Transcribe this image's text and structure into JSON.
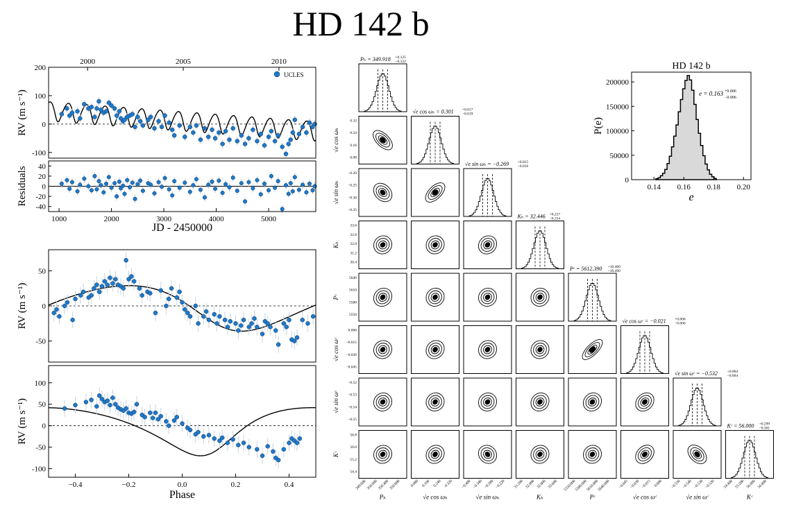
{
  "title": "HD 142 b",
  "chart_data": [
    {
      "id": "rv-time",
      "type": "scatter",
      "ylabel": "RV (m s⁻¹)",
      "xlim": [
        800,
        5900
      ],
      "ylim": [
        -120,
        200
      ],
      "yticks": [
        -100,
        0,
        100,
        200
      ],
      "top_axis_ticks": [
        {
          "value": 1544,
          "label": "2000"
        },
        {
          "value": 3370,
          "label": "2005"
        },
        {
          "value": 5197,
          "label": "2010"
        }
      ],
      "legend": {
        "label": "UCLES",
        "placement": "top-right"
      },
      "model": {
        "P": 350,
        "K": 34,
        "e": 0.16,
        "phase0": 0.3,
        "trend_start": 48,
        "trend_end": -22
      },
      "points_x": [
        1050,
        1150,
        1200,
        1250,
        1350,
        1400,
        1480,
        1560,
        1620,
        1680,
        1720,
        1760,
        1800,
        1850,
        1900,
        1950,
        2000,
        2060,
        2100,
        2150,
        2180,
        2220,
        2250,
        2300,
        2350,
        2400,
        2450,
        2500,
        2550,
        2600,
        2700,
        2750,
        2820,
        2900,
        2960,
        3020,
        3100,
        3160,
        3200,
        3300,
        3400,
        3500,
        3560,
        3620,
        3700,
        3780,
        3850,
        3920,
        3980,
        4050,
        4120,
        4180,
        4250,
        4320,
        4400,
        4480,
        4550,
        4620,
        4700,
        4780,
        4850,
        4920,
        5000,
        5050,
        5120,
        5180,
        5260,
        5330,
        5380,
        5420,
        5460,
        5500,
        5580,
        5650,
        5720,
        5780,
        5840,
        5880
      ],
      "points_y": [
        35,
        55,
        30,
        40,
        45,
        20,
        70,
        55,
        60,
        25,
        55,
        80,
        50,
        40,
        45,
        75,
        65,
        55,
        30,
        45,
        20,
        10,
        15,
        25,
        30,
        35,
        -10,
        25,
        10,
        -5,
        15,
        25,
        -15,
        10,
        -10,
        30,
        5,
        -20,
        -40,
        -5,
        -45,
        -10,
        -30,
        -5,
        -55,
        -15,
        -45,
        -20,
        -50,
        -30,
        -70,
        -25,
        -55,
        -15,
        -60,
        -40,
        -70,
        -50,
        -20,
        -60,
        -35,
        -75,
        -45,
        -25,
        -60,
        -40,
        -80,
        -105,
        -70,
        -55,
        -30,
        15,
        -35,
        -10,
        -30,
        5,
        -10,
        0
      ],
      "residuals": {
        "ylabel": "Residuals",
        "xlabel": "JD - 2450000",
        "ylim": [
          -50,
          50
        ],
        "yticks": [
          -40,
          -20,
          0,
          20,
          40
        ],
        "xticks": [
          1000,
          2000,
          3000,
          4000,
          5000
        ],
        "values": [
          5,
          12,
          -5,
          8,
          -10,
          3,
          15,
          0,
          -8,
          20,
          -6,
          10,
          2,
          -12,
          5,
          18,
          -3,
          6,
          -20,
          9,
          -4,
          1,
          -15,
          12,
          -2,
          7,
          -25,
          4,
          11,
          -9,
          6,
          3,
          -14,
          8,
          -1,
          16,
          -6,
          -18,
          10,
          -3,
          7,
          -11,
          2,
          14,
          -7,
          -22,
          3,
          9,
          -5,
          11,
          -13,
          4,
          -2,
          17,
          -9,
          6,
          -30,
          8,
          -4,
          12,
          -16,
          5,
          -8,
          20,
          -3,
          10,
          -45,
          2,
          -15,
          6,
          -10,
          18,
          -7,
          3,
          -12,
          5,
          -8,
          0
        ]
      }
    },
    {
      "id": "rv-phase-b",
      "type": "scatter",
      "ylabel": "RV (m s⁻¹)",
      "xlim": [
        -0.5,
        0.5
      ],
      "ylim": [
        -80,
        80
      ],
      "yticks": [
        -50,
        0,
        50
      ],
      "model": {
        "K": 32.4,
        "e": 0.163,
        "M0": 5.5,
        "omega": 2.3
      },
      "points_phase": [
        -0.48,
        -0.47,
        -0.46,
        -0.44,
        -0.43,
        -0.41,
        -0.4,
        -0.38,
        -0.37,
        -0.35,
        -0.34,
        -0.33,
        -0.32,
        -0.31,
        -0.3,
        -0.29,
        -0.28,
        -0.27,
        -0.26,
        -0.25,
        -0.24,
        -0.23,
        -0.22,
        -0.21,
        -0.2,
        -0.19,
        -0.18,
        -0.16,
        -0.15,
        -0.13,
        -0.12,
        -0.1,
        -0.08,
        -0.06,
        -0.05,
        -0.04,
        -0.02,
        -0.01,
        0.0,
        0.01,
        0.02,
        0.03,
        0.05,
        0.06,
        0.08,
        0.09,
        0.1,
        0.12,
        0.13,
        0.14,
        0.16,
        0.17,
        0.18,
        0.2,
        0.21,
        0.22,
        0.23,
        0.25,
        0.26,
        0.27,
        0.28,
        0.3,
        0.31,
        0.32,
        0.33,
        0.35,
        0.36,
        0.38,
        0.39,
        0.4,
        0.41,
        0.42,
        0.43,
        0.45,
        0.47,
        0.49
      ],
      "points_rv": [
        -10,
        -5,
        -15,
        0,
        5,
        -20,
        10,
        15,
        20,
        12,
        15,
        25,
        30,
        20,
        28,
        35,
        30,
        40,
        32,
        38,
        30,
        28,
        25,
        65,
        38,
        42,
        35,
        25,
        15,
        20,
        18,
        -10,
        22,
        0,
        10,
        25,
        12,
        20,
        5,
        -5,
        -10,
        -15,
        0,
        -25,
        -15,
        -8,
        -20,
        -12,
        -25,
        -15,
        -20,
        -30,
        -22,
        -25,
        -35,
        -28,
        -20,
        -30,
        -25,
        -18,
        -30,
        -40,
        -22,
        -25,
        -30,
        -35,
        -55,
        -25,
        -30,
        -20,
        -48,
        -50,
        -45,
        -20,
        -25,
        -15
      ]
    },
    {
      "id": "rv-phase-c",
      "type": "scatter",
      "ylabel": "RV (m s⁻¹)",
      "xlabel": "Phase",
      "xlim": [
        -0.5,
        0.5
      ],
      "ylim": [
        -120,
        140
      ],
      "yticks": [
        -100,
        -50,
        0,
        50,
        100
      ],
      "xticks": [
        -0.4,
        -0.2,
        0.0,
        0.2,
        0.4
      ],
      "model": {
        "K": 56.0,
        "e": 0.28,
        "M0": 5.6,
        "omega": 3.6
      },
      "points_phase": [
        -0.44,
        -0.4,
        -0.36,
        -0.34,
        -0.32,
        -0.31,
        -0.3,
        -0.29,
        -0.28,
        -0.27,
        -0.26,
        -0.25,
        -0.24,
        -0.23,
        -0.22,
        -0.21,
        -0.2,
        -0.19,
        -0.18,
        -0.17,
        -0.15,
        -0.14,
        -0.12,
        -0.11,
        -0.1,
        -0.09,
        -0.08,
        -0.06,
        -0.05,
        -0.03,
        -0.02,
        0.0,
        0.02,
        0.03,
        0.05,
        0.06,
        0.08,
        0.1,
        0.12,
        0.14,
        0.15,
        0.17,
        0.19,
        0.21,
        0.23,
        0.25,
        0.28,
        0.3,
        0.32,
        0.34,
        0.35,
        0.36,
        0.38,
        0.4,
        0.41,
        0.42,
        0.43,
        0.44
      ],
      "points_rv": [
        40,
        48,
        55,
        60,
        45,
        70,
        62,
        55,
        58,
        48,
        65,
        50,
        42,
        38,
        35,
        40,
        30,
        28,
        32,
        50,
        25,
        20,
        30,
        18,
        30,
        15,
        22,
        10,
        0,
        12,
        20,
        5,
        -5,
        -10,
        -20,
        -15,
        -25,
        -22,
        -30,
        -35,
        -28,
        -40,
        -32,
        -45,
        -40,
        -50,
        -55,
        -70,
        -48,
        -60,
        -75,
        -80,
        -55,
        -40,
        -30,
        -35,
        -40,
        -30
      ]
    },
    {
      "id": "posterior-e",
      "type": "bar",
      "title": "HD 142 b",
      "xlabel": "e",
      "ylabel": "P(e)",
      "xlim": [
        0.125,
        0.205
      ],
      "ylim": [
        0,
        220000
      ],
      "xticks": [
        0.14,
        0.16,
        0.18,
        0.2
      ],
      "yticks": [
        0,
        50000,
        100000,
        150000,
        200000
      ],
      "annotation": "e = 0.163",
      "annotation_sup": "+0.006",
      "annotation_sub": "−0.006",
      "bin_centers": [
        0.142,
        0.1435,
        0.145,
        0.1465,
        0.148,
        0.1495,
        0.151,
        0.1525,
        0.154,
        0.1555,
        0.157,
        0.1585,
        0.16,
        0.1615,
        0.163,
        0.1645,
        0.166,
        0.1675,
        0.169,
        0.1705,
        0.172,
        0.1735,
        0.175,
        0.1765,
        0.178,
        0.1795,
        0.181
      ],
      "bin_width": 0.0015,
      "counts": [
        2000,
        4000,
        8000,
        13000,
        21000,
        33000,
        48000,
        67000,
        89000,
        112000,
        139000,
        164000,
        186000,
        203000,
        213000,
        204000,
        183000,
        154000,
        123000,
        95000,
        70000,
        49000,
        32000,
        20000,
        11000,
        6000,
        2500
      ]
    },
    {
      "id": "corner-plot",
      "type": "scatter",
      "params": [
        {
          "label": "P_b",
          "axis_label": "Pₕ",
          "title_name": "Pₕ",
          "value": "349.918",
          "plus": "+0.125",
          "minus": "−0.122",
          "ticks": [
            "349.600",
            "350.000",
            "350.400",
            "350.800"
          ]
        },
        {
          "label": "sqrt(e)cos(omega_b)",
          "axis_label": "√e cos ωₕ",
          "title_name": "√e cos ωₕ",
          "value": "0.301",
          "plus": "+0.017",
          "minus": "−0.019",
          "ticks": [
            "0.080",
            "0.160",
            "0.240",
            "0.320"
          ]
        },
        {
          "label": "sqrt(e)sin(omega_b)",
          "axis_label": "√e sin ωₕ",
          "title_name": "√e sin ωₕ",
          "value": "−0.269",
          "plus": "+0.015",
          "minus": "−0.016",
          "ticks": [
            "−0.400",
            "−0.340",
            "−0.280",
            "−0.220"
          ]
        },
        {
          "label": "K_b",
          "axis_label": "Kₕ",
          "title_name": "Kₕ",
          "value": "32.446",
          "plus": "+0.257",
          "minus": "−0.254",
          "ticks": [
            "31.200",
            "32.000",
            "32.800",
            "33.600"
          ]
        },
        {
          "label": "P_c",
          "axis_label": "Pᶜ",
          "title_name": "Pᶜ",
          "value": "5612.390",
          "plus": "+10.460",
          "minus": "−10.490",
          "ticks": [
            "5550.000",
            "5580.000",
            "5610.000",
            "5640.000"
          ]
        },
        {
          "label": "sqrt(e)cos(omega_c)",
          "axis_label": "√e cos ωᶜ",
          "title_name": "√e cos ωᶜ",
          "value": "−0.021",
          "plus": "+0.006",
          "minus": "−0.006",
          "ticks": [
            "−0.045",
            "−0.030",
            "−0.015",
            "0.000"
          ]
        },
        {
          "label": "sqrt(e)sin(omega_c)",
          "axis_label": "√e sin ωᶜ",
          "title_name": "√e sin ωᶜ",
          "value": "−0.532",
          "plus": "+0.004",
          "minus": "−0.004",
          "ticks": [
            "−0.550",
            "−0.540",
            "−0.530",
            "−0.520"
          ]
        },
        {
          "label": "K_c",
          "axis_label": "Kᶜ",
          "title_name": "Kᶜ",
          "value": "56.000",
          "plus": "+0.299",
          "minus": "−0.301",
          "ticks": [
            "54.400",
            "55.200",
            "56.000",
            "56.800"
          ]
        }
      ],
      "row_tick_labels": [
        [],
        [
          "0.32",
          "0.24",
          "0.16",
          "0.08"
        ],
        [
          "−0.20",
          "−0.25",
          "−0.30",
          "−0.35"
        ],
        [
          "33.6",
          "32.8",
          "32.0",
          "31.2",
          "30.4"
        ],
        [
          "5640",
          "5610",
          "5580",
          "5550"
        ],
        [
          "0.000",
          "−0.015",
          "−0.030",
          "−0.045"
        ],
        [
          "−0.52",
          "−0.53",
          "−0.54",
          "−0.55"
        ],
        [
          "56.8",
          "56.0",
          "55.2",
          "54.4"
        ]
      ],
      "correlations": [
        [
          0
        ],
        [
          -0.55,
          0
        ],
        [
          -0.25,
          0.55,
          0
        ],
        [
          0.05,
          0.05,
          0.1,
          0
        ],
        [
          0.1,
          0.05,
          0.05,
          0.05,
          0
        ],
        [
          0.05,
          0.1,
          0.05,
          0.05,
          0.75,
          0
        ],
        [
          0.05,
          0.05,
          0.05,
          0.1,
          0.1,
          0.2,
          0
        ],
        [
          0.05,
          0.1,
          -0.1,
          0.05,
          0.05,
          0.25,
          -0.35,
          0
        ]
      ]
    }
  ]
}
